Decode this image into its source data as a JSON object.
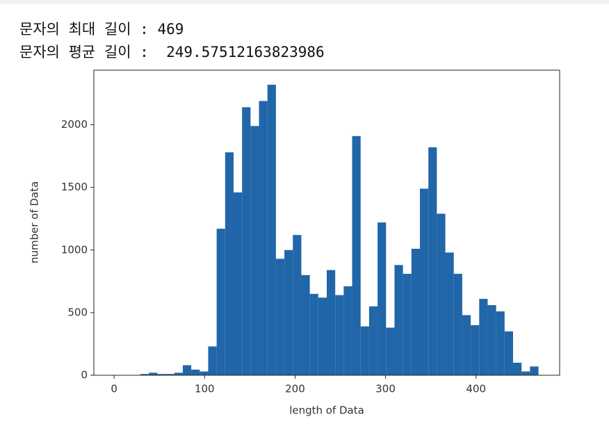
{
  "output_lines": [
    "문자의 최대 길이 : 469",
    "문자의 평균 길이 :  249.57512163823986"
  ],
  "chart_data": {
    "type": "histogram",
    "x_label": "length of Data",
    "y_label": "number of Data",
    "color": "#2166a8",
    "bins": [
      1,
      10.36,
      19.72,
      29.08,
      38.44,
      47.8,
      57.16,
      66.52,
      75.88,
      85.24,
      94.6,
      103.96,
      113.32,
      122.68,
      132.04,
      141.4,
      150.76,
      160.12,
      169.48,
      178.84,
      188.2,
      197.56,
      206.92,
      216.28,
      225.64,
      235,
      244.36,
      253.72,
      263.08,
      272.44,
      281.8,
      291.16,
      300.52,
      309.88,
      319.24,
      328.6,
      337.96,
      347.32,
      356.68,
      366.04,
      375.4,
      384.76,
      394.12,
      403.48,
      412.84,
      422.2,
      431.56,
      440.92,
      450.28,
      459.64,
      469
    ],
    "values": [
      0,
      0,
      0,
      10,
      20,
      10,
      10,
      20,
      80,
      45,
      30,
      230,
      1170,
      1780,
      1460,
      2140,
      1990,
      2190,
      2320,
      930,
      1000,
      1120,
      800,
      650,
      620,
      840,
      640,
      710,
      1910,
      390,
      550,
      1220,
      380,
      880,
      810,
      1010,
      1490,
      1820,
      1290,
      980,
      810,
      480,
      400,
      610,
      560,
      510,
      350,
      100,
      30,
      70
    ],
    "xlim": [
      -22.4,
      492.4
    ],
    "xticks": [
      0,
      100,
      200,
      300,
      400
    ],
    "ylim": [
      0,
      2436
    ],
    "yticks": [
      0,
      500,
      1000,
      1500,
      2000
    ]
  }
}
